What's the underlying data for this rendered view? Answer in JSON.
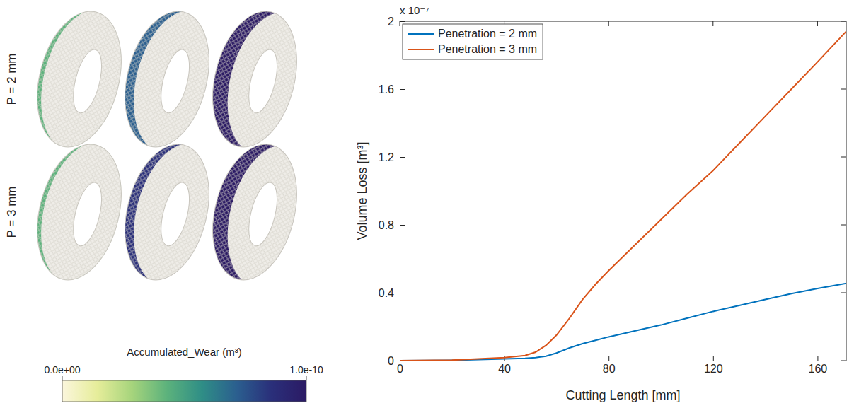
{
  "chart_data": [
    {
      "type": "image_grid",
      "row_labels": [
        "P = 2 mm",
        "P = 3 mm"
      ],
      "colorbar": {
        "title": "Accumulated_Wear (m³)",
        "range": [
          0,
          1e-10
        ],
        "ticks": [
          {
            "value": 0,
            "label": "0.0e+00"
          },
          {
            "value": 1e-10,
            "label": "1.0e-10"
          }
        ],
        "colors": [
          "#fbf6dc",
          "#e6ed9a",
          "#a6d47c",
          "#5cb27c",
          "#2f8e86",
          "#2b5f8f",
          "#2a2f7a",
          "#2b1a64"
        ]
      }
    },
    {
      "type": "line",
      "xlabel": "Cutting Length [mm]",
      "ylabel": "Volume Loss [m³]",
      "annotations": [
        "x 10⁻⁷"
      ],
      "x": [
        0,
        20,
        40,
        48,
        52,
        56,
        60,
        65,
        70,
        75,
        80,
        90,
        100,
        110,
        120,
        130,
        140,
        150,
        160,
        171
      ],
      "series": [
        {
          "name": "Penetration = 2 mm",
          "color": "#0072bd",
          "values": [
            0,
            0.002,
            0.01,
            0.014,
            0.018,
            0.026,
            0.045,
            0.075,
            0.1,
            0.12,
            0.14,
            0.175,
            0.21,
            0.25,
            0.29,
            0.325,
            0.36,
            0.395,
            0.425,
            0.455
          ]
        },
        {
          "name": "Penetration = 3 mm",
          "color": "#d95319",
          "values": [
            0,
            0.003,
            0.018,
            0.03,
            0.05,
            0.09,
            0.15,
            0.25,
            0.36,
            0.45,
            0.53,
            0.68,
            0.83,
            0.98,
            1.12,
            1.28,
            1.44,
            1.6,
            1.76,
            1.94
          ]
        }
      ],
      "xlim": [
        0,
        171
      ],
      "xticks": [
        0,
        40,
        80,
        120,
        160
      ],
      "ylim": [
        0,
        2
      ],
      "yticks": [
        0,
        0.4,
        0.8,
        1.2,
        1.6,
        2
      ],
      "grid": false,
      "legend": "upper left"
    }
  ]
}
